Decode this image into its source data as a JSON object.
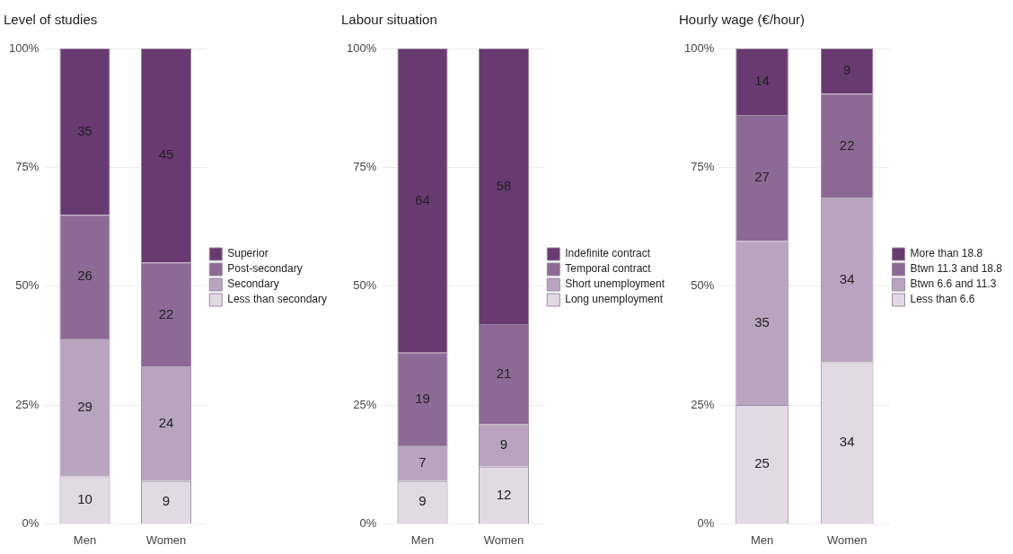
{
  "chart_data": [
    {
      "type": "bar",
      "title": "Level of studies",
      "categories": [
        "Men",
        "Women"
      ],
      "stacked": true,
      "ylim": [
        0,
        100
      ],
      "yticks": [
        {
          "value": 0,
          "label": "0%"
        },
        {
          "value": 25,
          "label": "25%"
        },
        {
          "value": 50,
          "label": "50%"
        },
        {
          "value": 75,
          "label": "75%"
        },
        {
          "value": 100,
          "label": "100%"
        }
      ],
      "grid": "y",
      "legend": "right",
      "series": [
        {
          "name": "Less than secondary",
          "color": "#e1d9e4",
          "values": [
            10,
            9
          ],
          "value_labels": [
            "10",
            "9"
          ]
        },
        {
          "name": "Secondary",
          "color": "#b9a4c0",
          "values": [
            29,
            24
          ],
          "value_labels": [
            "29",
            "24"
          ]
        },
        {
          "name": "Post-secondary",
          "color": "#8d6995",
          "values": [
            26,
            22
          ],
          "value_labels": [
            "26",
            "22"
          ]
        },
        {
          "name": "Superior",
          "color": "#683a71",
          "values": [
            35,
            45
          ],
          "value_labels": [
            "35",
            "45"
          ]
        }
      ]
    },
    {
      "type": "bar",
      "title": "Labour situation",
      "categories": [
        "Men",
        "Women"
      ],
      "stacked": true,
      "ylim": [
        0,
        100
      ],
      "yticks": [
        {
          "value": 0,
          "label": "0%"
        },
        {
          "value": 25,
          "label": "25%"
        },
        {
          "value": 50,
          "label": "50%"
        },
        {
          "value": 75,
          "label": "75%"
        },
        {
          "value": 100,
          "label": "100%"
        }
      ],
      "grid": "y",
      "legend": "right",
      "series": [
        {
          "name": "Long unemployment",
          "color": "#e1d9e4",
          "values": [
            9,
            12
          ],
          "value_labels": [
            "9",
            "12"
          ]
        },
        {
          "name": "Short unemployment",
          "color": "#b9a4c0",
          "values": [
            7.5,
            9
          ],
          "value_labels": [
            "7",
            "9"
          ]
        },
        {
          "name": "Temporal contract",
          "color": "#8d6995",
          "values": [
            19.5,
            21
          ],
          "value_labels": [
            "19",
            "21"
          ]
        },
        {
          "name": "Indefinite contract",
          "color": "#683a71",
          "values": [
            64,
            58
          ],
          "value_labels": [
            "64",
            "58"
          ]
        }
      ]
    },
    {
      "type": "bar",
      "title": "Hourly wage (€/hour)",
      "categories": [
        "Men",
        "Women"
      ],
      "stacked": true,
      "ylim": [
        0,
        100
      ],
      "yticks": [
        {
          "value": 0,
          "label": "0%"
        },
        {
          "value": 25,
          "label": "25%"
        },
        {
          "value": 50,
          "label": "50%"
        },
        {
          "value": 75,
          "label": "75%"
        },
        {
          "value": 100,
          "label": "100%"
        }
      ],
      "grid": "y",
      "legend": "right",
      "series": [
        {
          "name": "Less than 6.6",
          "color": "#e1d9e4",
          "values": [
            25,
            34
          ],
          "value_labels": [
            "25",
            "34"
          ]
        },
        {
          "name": "Btwn 6.6 and 11.3",
          "color": "#b9a4c0",
          "values": [
            34.5,
            34.5
          ],
          "value_labels": [
            "35",
            "34"
          ]
        },
        {
          "name": "Btwn 11.3 and 18.8",
          "color": "#8d6995",
          "values": [
            26.5,
            22
          ],
          "value_labels": [
            "27",
            "22"
          ]
        },
        {
          "name": "More than 18.8",
          "color": "#683a71",
          "values": [
            14,
            9.5
          ],
          "value_labels": [
            "14",
            "9"
          ]
        }
      ]
    }
  ]
}
